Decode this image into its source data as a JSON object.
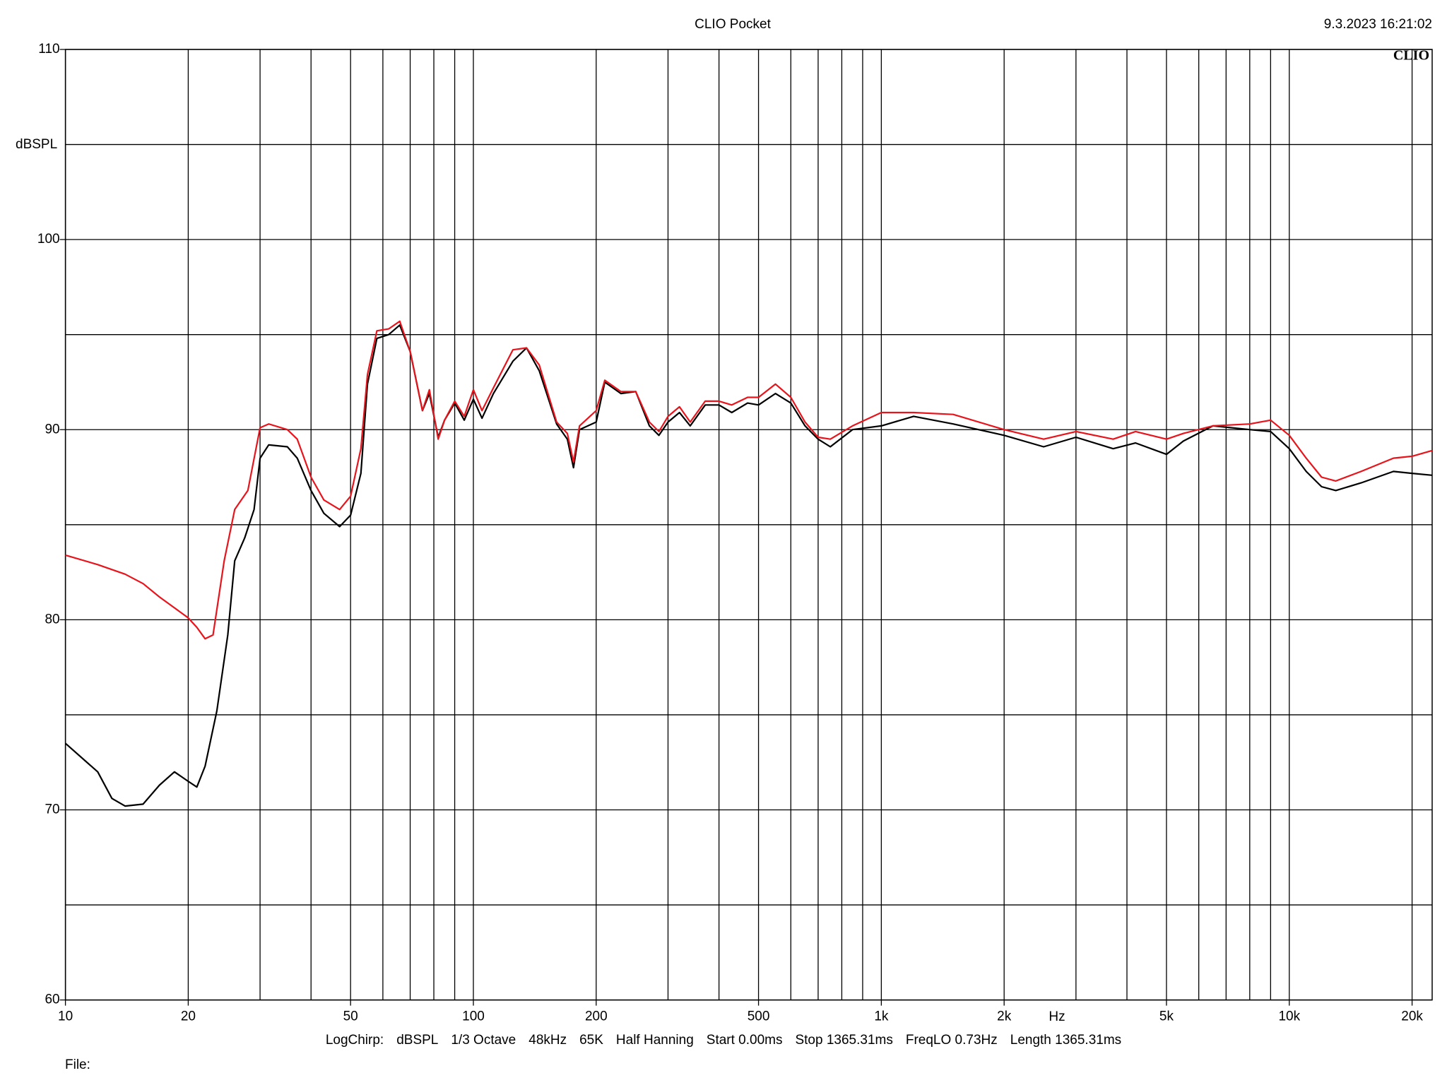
{
  "chart_data": {
    "type": "line",
    "title": "CLIO Pocket",
    "timestamp": "9.3.2023 16:21:02",
    "logo": "CLIO",
    "y_label": "dBSPL",
    "x_label": "Hz",
    "x_log": true,
    "grid": true,
    "xlim": [
      10,
      22400
    ],
    "ylim": [
      60,
      110
    ],
    "xticks": [
      10,
      20,
      50,
      100,
      200,
      500,
      {
        "value": 1000,
        "label": "1k"
      },
      {
        "value": 2000,
        "label": "2k"
      },
      {
        "value": 5000,
        "label": "5k"
      },
      {
        "value": 10000,
        "label": "10k"
      },
      {
        "value": 20000,
        "label": "20k"
      }
    ],
    "x_minor_ticks": [
      30,
      40,
      60,
      70,
      80,
      90,
      300,
      400,
      600,
      700,
      800,
      900,
      3000,
      4000,
      6000,
      7000,
      8000,
      9000
    ],
    "yticks": [
      60,
      70,
      80,
      90,
      100,
      110
    ],
    "y_minor_ticks": [
      65,
      75,
      85,
      95,
      105
    ],
    "series": [
      {
        "color": "#000000",
        "x": [
          10,
          12,
          13,
          14,
          15.5,
          17,
          18.5,
          20,
          21,
          22,
          23.5,
          25,
          26,
          27.5,
          29,
          30,
          31.5,
          35,
          37,
          40,
          43,
          47,
          50,
          53,
          55,
          58,
          62,
          66,
          70,
          75,
          78,
          82,
          85,
          90,
          95,
          100,
          105,
          112,
          125,
          135,
          145,
          160,
          170,
          176,
          182,
          200,
          210,
          230,
          250,
          270,
          285,
          300,
          320,
          340,
          370,
          400,
          430,
          470,
          500,
          550,
          600,
          650,
          700,
          750,
          850,
          1000,
          1200,
          1500,
          2000,
          2500,
          3000,
          3700,
          4200,
          5000,
          5500,
          6500,
          8000,
          9000,
          10000,
          11000,
          12000,
          13000,
          15000,
          18000,
          20000,
          22400
        ],
        "values": [
          73.5,
          72.0,
          70.6,
          70.2,
          70.3,
          71.3,
          72.0,
          71.5,
          71.2,
          72.3,
          75.2,
          79.2,
          83.1,
          84.3,
          85.8,
          88.5,
          89.2,
          89.1,
          88.5,
          86.8,
          85.6,
          84.9,
          85.5,
          87.7,
          92.4,
          94.8,
          95.0,
          95.5,
          94.1,
          91.0,
          91.9,
          89.6,
          90.5,
          91.4,
          90.5,
          91.6,
          90.6,
          91.9,
          93.6,
          94.3,
          93.1,
          90.3,
          89.5,
          88.0,
          90.0,
          90.4,
          92.5,
          91.9,
          92.0,
          90.2,
          89.7,
          90.4,
          90.9,
          90.2,
          91.3,
          91.3,
          90.9,
          91.4,
          91.3,
          91.9,
          91.4,
          90.2,
          89.5,
          89.1,
          90.0,
          90.2,
          90.7,
          90.3,
          89.7,
          89.1,
          89.6,
          89.0,
          89.3,
          88.7,
          89.4,
          90.2,
          90.0,
          89.9,
          89.0,
          87.8,
          87.0,
          86.8,
          87.2,
          87.8,
          87.7,
          87.6
        ]
      },
      {
        "color": "#e8141c",
        "x": [
          10,
          12,
          14,
          15.5,
          17,
          20,
          21,
          22,
          23,
          24.5,
          26,
          28,
          30,
          31.5,
          35,
          37,
          40,
          43,
          47,
          50,
          53,
          55,
          58,
          62,
          66,
          70,
          75,
          78,
          82,
          85,
          90,
          95,
          100,
          105,
          112,
          125,
          135,
          145,
          160,
          170,
          176,
          182,
          200,
          210,
          230,
          250,
          270,
          285,
          300,
          320,
          340,
          370,
          400,
          430,
          470,
          500,
          550,
          600,
          650,
          700,
          750,
          850,
          1000,
          1200,
          1500,
          2000,
          2500,
          3000,
          3700,
          4200,
          5000,
          5500,
          6500,
          8000,
          9000,
          10000,
          11000,
          12000,
          13000,
          15000,
          18000,
          20000,
          22400
        ],
        "values": [
          83.4,
          82.9,
          82.4,
          81.9,
          81.2,
          80.1,
          79.6,
          79.0,
          79.2,
          83.1,
          85.8,
          86.8,
          90.1,
          90.3,
          90.0,
          89.5,
          87.5,
          86.3,
          85.8,
          86.5,
          89.0,
          92.9,
          95.2,
          95.3,
          95.7,
          94.1,
          91.0,
          92.1,
          89.5,
          90.5,
          91.5,
          90.7,
          92.1,
          91.0,
          92.2,
          94.2,
          94.3,
          93.4,
          90.4,
          89.8,
          88.3,
          90.2,
          91.0,
          92.6,
          92.0,
          92.0,
          90.4,
          89.9,
          90.7,
          91.2,
          90.4,
          91.5,
          91.5,
          91.3,
          91.7,
          91.7,
          92.4,
          91.7,
          90.4,
          89.6,
          89.5,
          90.2,
          90.9,
          90.9,
          90.8,
          90.0,
          89.5,
          89.9,
          89.5,
          89.9,
          89.5,
          89.8,
          90.2,
          90.3,
          90.5,
          89.7,
          88.5,
          87.5,
          87.3,
          87.8,
          88.5,
          88.6,
          88.9
        ]
      }
    ],
    "settings": [
      "LogChirp:",
      "dBSPL",
      "1/3 Octave",
      "48kHz",
      "65K",
      "Half Hanning",
      "Start 0.00ms",
      "Stop 1365.31ms",
      "FreqLO 0.73Hz",
      "Length 1365.31ms"
    ],
    "file_label": "File:"
  }
}
